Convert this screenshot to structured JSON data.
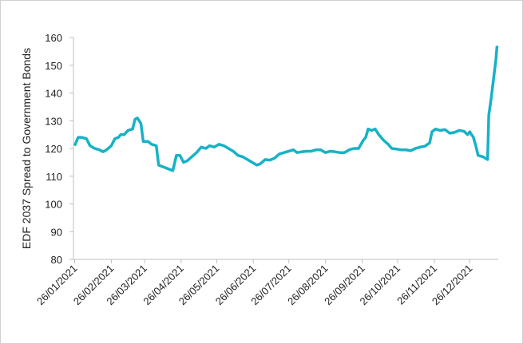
{
  "chart_data": {
    "type": "line",
    "y_label": "EDF 2037 Spread to Government Bonds",
    "xlim": [
      "2021-01-25",
      "2022-01-19"
    ],
    "xticks": [
      {
        "value": "2021-01-26",
        "label": "26/01/2021"
      },
      {
        "value": "2021-02-26",
        "label": "26/02/2021"
      },
      {
        "value": "2021-03-26",
        "label": "26/03/2021"
      },
      {
        "value": "2021-04-26",
        "label": "26/04/2021"
      },
      {
        "value": "2021-05-26",
        "label": "26/05/2021"
      },
      {
        "value": "2021-06-26",
        "label": "26/06/2021"
      },
      {
        "value": "2021-07-26",
        "label": "26/07/2021"
      },
      {
        "value": "2021-08-26",
        "label": "26/08/2021"
      },
      {
        "value": "2021-09-26",
        "label": "26/09/2021"
      },
      {
        "value": "2021-10-26",
        "label": "26/10/2021"
      },
      {
        "value": "2021-11-26",
        "label": "26/11/2021"
      },
      {
        "value": "2021-12-26",
        "label": "26/12/2021"
      }
    ],
    "ylim": [
      80,
      160
    ],
    "yticks": [
      80,
      90,
      100,
      110,
      120,
      130,
      140,
      150,
      160
    ],
    "grid": false,
    "x": [
      "2021-01-26",
      "2021-01-29",
      "2021-02-01",
      "2021-02-05",
      "2021-02-08",
      "2021-02-12",
      "2021-02-16",
      "2021-02-19",
      "2021-02-22",
      "2021-02-26",
      "2021-03-01",
      "2021-03-04",
      "2021-03-06",
      "2021-03-09",
      "2021-03-12",
      "2021-03-16",
      "2021-03-18",
      "2021-03-20",
      "2021-03-23",
      "2021-03-25",
      "2021-03-29",
      "2021-04-01",
      "2021-04-05",
      "2021-04-07",
      "2021-04-10",
      "2021-04-13",
      "2021-04-16",
      "2021-04-19",
      "2021-04-22",
      "2021-04-25",
      "2021-04-28",
      "2021-05-01",
      "2021-05-05",
      "2021-05-09",
      "2021-05-13",
      "2021-05-17",
      "2021-05-20",
      "2021-05-24",
      "2021-05-28",
      "2021-06-01",
      "2021-06-05",
      "2021-06-09",
      "2021-06-13",
      "2021-06-17",
      "2021-06-21",
      "2021-06-25",
      "2021-06-29",
      "2021-07-02",
      "2021-07-06",
      "2021-07-10",
      "2021-07-14",
      "2021-07-18",
      "2021-07-22",
      "2021-07-26",
      "2021-07-30",
      "2021-08-02",
      "2021-08-06",
      "2021-08-10",
      "2021-08-14",
      "2021-08-18",
      "2021-08-22",
      "2021-08-26",
      "2021-08-30",
      "2021-09-03",
      "2021-09-07",
      "2021-09-11",
      "2021-09-15",
      "2021-09-19",
      "2021-09-23",
      "2021-09-27",
      "2021-09-29",
      "2021-10-01",
      "2021-10-04",
      "2021-10-07",
      "2021-10-10",
      "2021-10-14",
      "2021-10-18",
      "2021-10-21",
      "2021-10-25",
      "2021-10-29",
      "2021-11-02",
      "2021-11-06",
      "2021-11-10",
      "2021-11-14",
      "2021-11-18",
      "2021-11-22",
      "2021-11-24",
      "2021-11-27",
      "2021-12-01",
      "2021-12-05",
      "2021-12-09",
      "2021-12-13",
      "2021-12-17",
      "2021-12-21",
      "2021-12-24",
      "2021-12-26",
      "2021-12-29",
      "2021-12-31",
      "2022-01-02",
      "2022-01-06",
      "2022-01-10",
      "2022-01-11",
      "2022-01-13",
      "2022-01-15",
      "2022-01-17",
      "2022-01-18"
    ],
    "series": [
      {
        "name": "EDF 2037 Spread to Government Bonds",
        "color": "#17b2c6",
        "values": [
          121,
          124,
          124,
          123.5,
          121,
          120,
          119.5,
          118.8,
          119.5,
          121,
          123.5,
          124,
          125,
          125,
          126.5,
          127,
          130.5,
          131,
          129,
          122.5,
          122.5,
          121.5,
          121,
          114,
          113.5,
          113,
          112.5,
          112,
          117.5,
          117.5,
          115,
          115.5,
          117,
          118.5,
          120.5,
          120,
          121,
          120.5,
          121.5,
          121,
          120,
          119,
          117.5,
          117,
          116,
          115,
          114,
          114.5,
          116,
          115.8,
          116.5,
          118,
          118.5,
          119,
          119.5,
          118.5,
          118.8,
          119,
          119,
          119.5,
          119.5,
          118.5,
          119,
          118.8,
          118.5,
          118.5,
          119.5,
          120,
          120,
          123,
          124,
          127,
          126.5,
          127,
          125,
          123,
          121.5,
          120,
          119.8,
          119.5,
          119.5,
          119.2,
          120,
          120.5,
          120.8,
          122,
          126,
          127,
          126.5,
          126.8,
          125.5,
          125.8,
          126.5,
          126.2,
          125,
          126,
          124,
          121,
          117.5,
          117,
          116,
          132,
          138,
          145,
          152,
          157
        ]
      }
    ]
  }
}
